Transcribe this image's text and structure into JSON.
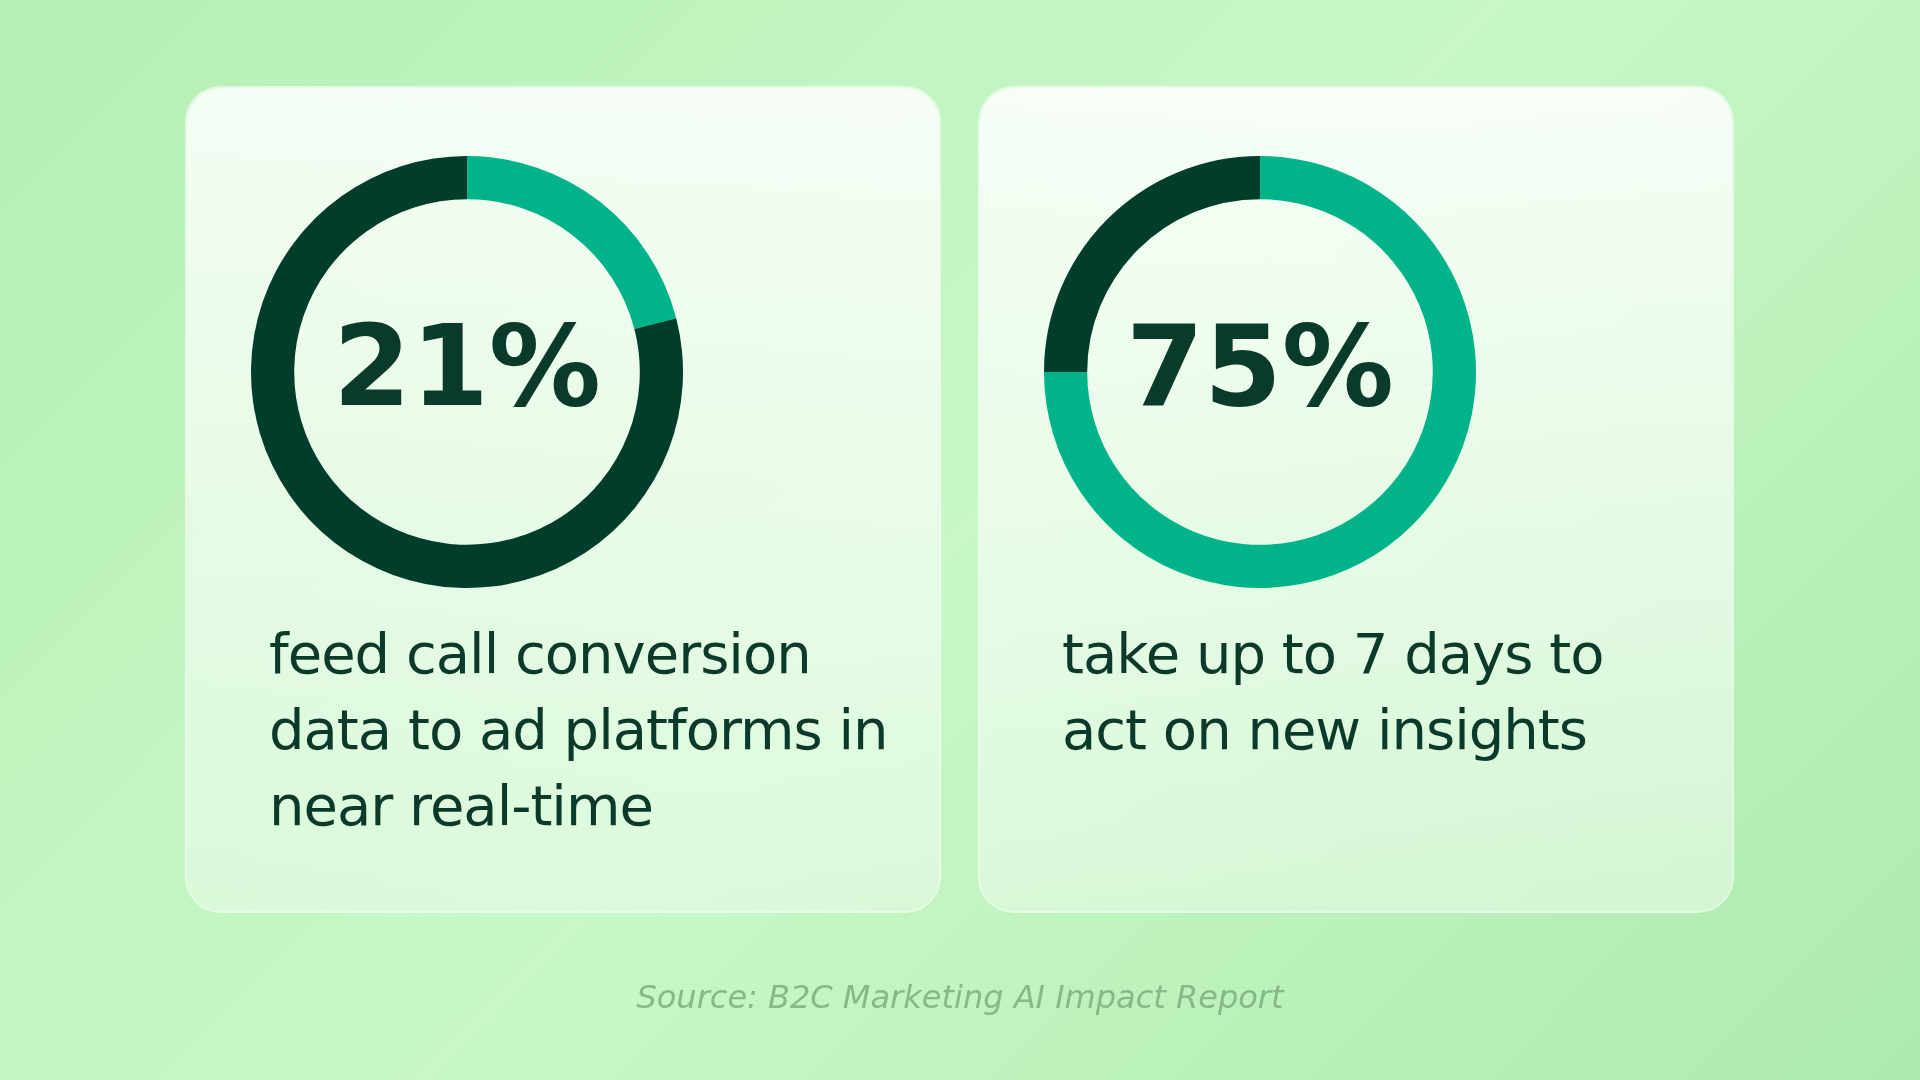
{
  "chart_data": [
    {
      "type": "donut",
      "categories": [
        null,
        null
      ],
      "values": [
        21,
        79
      ],
      "colors": [
        "#00b388",
        "#003d2b"
      ],
      "value_labels": [
        "21%",
        null
      ],
      "subtitle": "feed call conversion data to ad platforms in near real-time"
    },
    {
      "type": "donut",
      "categories": [
        null,
        null
      ],
      "values": [
        75,
        25
      ],
      "colors": [
        "#00b388",
        "#003d2b"
      ],
      "value_labels": [
        "75%",
        null
      ],
      "subtitle": "take up to 7 days to act on new insights",
      "annotations": [
        "Source: B2C Marketing AI Impact Report"
      ]
    }
  ]
}
